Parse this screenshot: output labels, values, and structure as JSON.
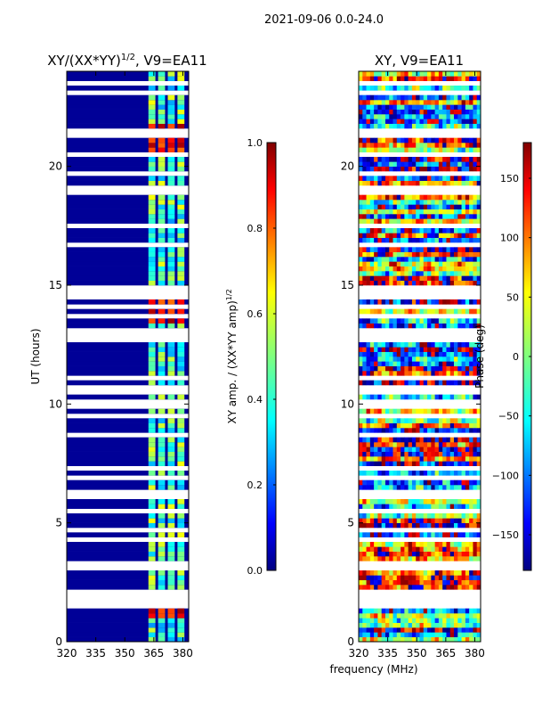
{
  "figure_title": "2021-09-06 0.0-24.0",
  "xlabel": "frequency (MHz)",
  "colors": {
    "no_data": "#ffffff",
    "axis": "#000000",
    "jet_stops": [
      "#000080",
      "#0000ff",
      "#00ffff",
      "#7fff7f",
      "#ffff00",
      "#ff0000",
      "#800000"
    ]
  },
  "chart_data": [
    {
      "type": "heatmap",
      "title_main": "XY/(XX*YY)",
      "title_superscript": "1/2",
      "title_suffix": ", V9=EA11",
      "xlabel": "",
      "ylabel": "UT (hours)",
      "xlim": [
        320,
        383
      ],
      "ylim": [
        0,
        24
      ],
      "xticks": [
        320,
        335,
        350,
        365,
        380
      ],
      "yticks": [
        0,
        5,
        10,
        15,
        20
      ],
      "xtick_labels": [
        "320",
        "335",
        "350",
        "365",
        "380"
      ],
      "ytick_labels": [
        "0",
        "5",
        "10",
        "15",
        "20"
      ],
      "freq_range_MHz": [
        320,
        383
      ],
      "bright_channels_MHz": [
        364,
        369,
        374,
        379
      ],
      "bright_time_ranges_h": [
        [
          1.0,
          2.0
        ],
        [
          13.5,
          15.0
        ],
        [
          20.5,
          21.8
        ]
      ],
      "colorbar": {
        "label_main": "XY amp. / (XX*YY amp)",
        "label_superscript": "1/2",
        "range": [
          0.0,
          1.0
        ],
        "ticks": [
          0.0,
          0.2,
          0.4,
          0.6,
          0.8,
          1.0
        ],
        "tick_labels": [
          "0.0",
          "0.2",
          "0.4",
          "0.6",
          "0.8",
          "1.0"
        ]
      }
    },
    {
      "type": "heatmap",
      "title_main": "XY, V9=EA11",
      "xlabel": "",
      "ylabel": "",
      "xlim": [
        320,
        383
      ],
      "ylim": [
        0,
        24
      ],
      "xticks": [
        320,
        335,
        350,
        365,
        380
      ],
      "yticks": [
        0,
        5,
        10,
        15,
        20
      ],
      "xtick_labels": [
        "320",
        "335",
        "350",
        "365",
        "380"
      ],
      "ytick_labels": [
        "0",
        "5",
        "10",
        "15",
        "20"
      ],
      "colorbar": {
        "label": "Phase (deg)",
        "range": [
          -180,
          180
        ],
        "ticks": [
          -150,
          -100,
          -50,
          0,
          50,
          100,
          150
        ],
        "tick_labels": [
          "−150",
          "−100",
          "−50",
          "0",
          "50",
          "100",
          "150"
        ]
      }
    }
  ]
}
